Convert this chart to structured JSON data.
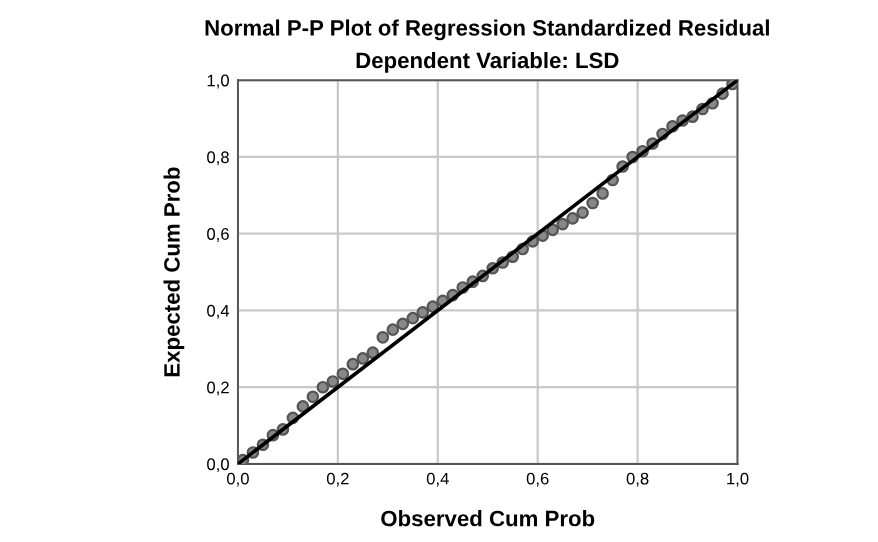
{
  "chart_data": {
    "type": "scatter",
    "title": "Normal P-P Plot of Regression Standardized Residual",
    "subtitle": "Dependent Variable: LSD",
    "xlabel": "Observed Cum Prob",
    "ylabel": "Expected Cum Prob",
    "series": [
      {
        "color": "#555555",
        "marker": "circle",
        "x": [
          0.01,
          0.03,
          0.05,
          0.07,
          0.09,
          0.11,
          0.13,
          0.15,
          0.17,
          0.19,
          0.21,
          0.23,
          0.25,
          0.27,
          0.29,
          0.31,
          0.33,
          0.35,
          0.37,
          0.39,
          0.41,
          0.43,
          0.45,
          0.47,
          0.49,
          0.51,
          0.53,
          0.55,
          0.57,
          0.59,
          0.61,
          0.63,
          0.65,
          0.67,
          0.69,
          0.71,
          0.73,
          0.75,
          0.77,
          0.79,
          0.81,
          0.83,
          0.85,
          0.87,
          0.89,
          0.91,
          0.93,
          0.95,
          0.97,
          0.99
        ],
        "values": [
          0.01,
          0.03,
          0.05,
          0.075,
          0.09,
          0.12,
          0.15,
          0.175,
          0.2,
          0.215,
          0.235,
          0.26,
          0.275,
          0.29,
          0.33,
          0.35,
          0.365,
          0.38,
          0.395,
          0.41,
          0.425,
          0.44,
          0.46,
          0.475,
          0.49,
          0.51,
          0.525,
          0.54,
          0.56,
          0.58,
          0.595,
          0.61,
          0.625,
          0.64,
          0.655,
          0.68,
          0.705,
          0.74,
          0.775,
          0.8,
          0.815,
          0.835,
          0.86,
          0.88,
          0.895,
          0.905,
          0.925,
          0.94,
          0.965,
          0.99
        ]
      },
      {
        "type": "line",
        "color": "#000000",
        "line_style": "solid",
        "x": [
          0,
          1
        ],
        "values": [
          0,
          1
        ]
      }
    ],
    "xlim": [
      0,
      1
    ],
    "ylim": [
      0,
      1
    ],
    "xticks": [
      {
        "value": 0,
        "label": "0,0"
      },
      {
        "value": 0.2,
        "label": "0,2"
      },
      {
        "value": 0.4,
        "label": "0,4"
      },
      {
        "value": 0.6,
        "label": "0,6"
      },
      {
        "value": 0.8,
        "label": "0,8"
      },
      {
        "value": 1,
        "label": "1,0"
      }
    ],
    "yticks": [
      {
        "value": 0,
        "label": "0,0"
      },
      {
        "value": 0.2,
        "label": "0,2"
      },
      {
        "value": 0.4,
        "label": "0,4"
      },
      {
        "value": 0.6,
        "label": "0,6"
      },
      {
        "value": 0.8,
        "label": "0,8"
      },
      {
        "value": 1,
        "label": "1,0"
      }
    ],
    "grid": true
  }
}
